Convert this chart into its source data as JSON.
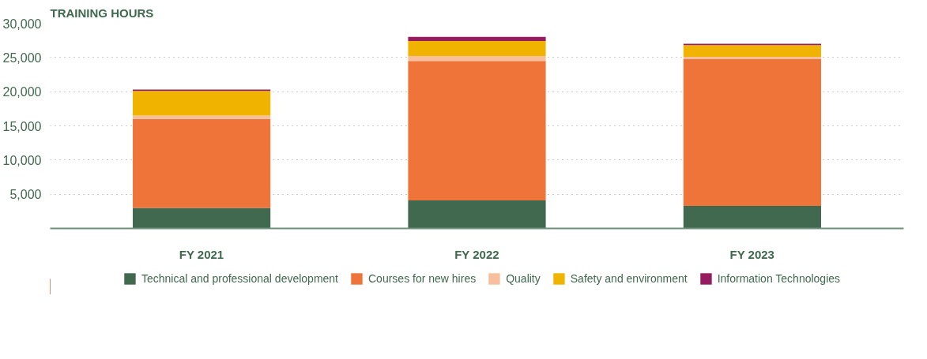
{
  "chart_data": {
    "type": "bar",
    "stacked": true,
    "title": "TRAINING HOURS",
    "categories": [
      "FY 2021",
      "FY 2022",
      "FY 2023"
    ],
    "series": [
      {
        "name": "Technical and professional development",
        "color": "#41694f",
        "values": [
          3000,
          4100,
          3300
        ]
      },
      {
        "name": "Courses for new hires",
        "color": "#ef743a",
        "values": [
          13000,
          20400,
          21500
        ]
      },
      {
        "name": "Quality",
        "color": "#f8bf9c",
        "values": [
          500,
          700,
          300
        ]
      },
      {
        "name": "Safety and environment",
        "color": "#f0b400",
        "values": [
          3600,
          2200,
          1700
        ]
      },
      {
        "name": "Information Technologies",
        "color": "#951c5e",
        "values": [
          200,
          600,
          200
        ]
      }
    ],
    "ylim": [
      0,
      30000
    ],
    "yticks": [
      {
        "value": 5000,
        "label": "5,000"
      },
      {
        "value": 10000,
        "label": "10,000"
      },
      {
        "value": 15000,
        "label": "15,000"
      },
      {
        "value": 20000,
        "label": "20,000"
      },
      {
        "value": 25000,
        "label": "25,000"
      },
      {
        "value": 30000,
        "label": "30,000"
      }
    ],
    "grid": "y",
    "legend": "bottom"
  }
}
